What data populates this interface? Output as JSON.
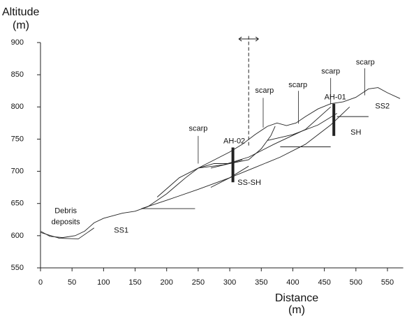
{
  "chart_data": {
    "type": "cross-section",
    "y_label": [
      "Altitude",
      "(m)"
    ],
    "x_label": [
      "Distance",
      "(m)"
    ],
    "xlim": [
      0,
      575
    ],
    "ylim": [
      550,
      900
    ],
    "xticks": [
      0,
      50,
      100,
      150,
      200,
      250,
      300,
      350,
      400,
      450,
      500,
      550
    ],
    "yticks": [
      550,
      600,
      650,
      700,
      750,
      800,
      850,
      900
    ],
    "color": "#222222",
    "lines": [
      {
        "x": [
          0,
          15,
          35,
          55,
          70,
          85,
          100,
          130,
          150,
          170,
          200,
          230,
          250,
          270,
          300,
          320,
          340,
          360,
          375,
          390,
          405,
          420,
          440,
          460,
          480,
          500,
          520,
          535,
          550,
          570
        ],
        "y": [
          607,
          599,
          597,
          600,
          607,
          620,
          627,
          635,
          638,
          645,
          665,
          690,
          705,
          715,
          730,
          742,
          757,
          770,
          775,
          771,
          775,
          785,
          797,
          805,
          808,
          815,
          828,
          830,
          822,
          813
        ]
      },
      {
        "x": [
          0,
          30,
          60,
          85
        ],
        "y": [
          605,
          596,
          595,
          612
        ]
      },
      {
        "x": [
          160,
          200,
          250,
          300,
          340,
          380,
          420,
          460,
          490
        ],
        "y": [
          642,
          655,
          672,
          690,
          706,
          722,
          742,
          772,
          800
        ]
      },
      {
        "x": [
          185,
          220,
          250,
          275,
          300,
          330,
          350,
          365,
          372
        ],
        "y": [
          660,
          690,
          705,
          712,
          712,
          718,
          735,
          755,
          770
        ]
      },
      {
        "x": [
          250,
          290,
          330,
          370,
          420,
          460
        ],
        "y": [
          705,
          710,
          722,
          742,
          765,
          800
        ]
      },
      {
        "x": [
          270,
          300,
          330
        ],
        "y": [
          675,
          690,
          708
        ]
      },
      {
        "x": [
          270,
          300,
          320
        ],
        "y": [
          705,
          712,
          718
        ]
      },
      {
        "x": [
          360,
          400,
          440,
          470
        ],
        "y": [
          748,
          757,
          772,
          790
        ]
      },
      {
        "x": [
          160,
          245
        ],
        "y": [
          642,
          642
        ]
      },
      {
        "x": [
          380,
          460
        ],
        "y": [
          738,
          738
        ]
      },
      {
        "x": [
          470,
          520
        ],
        "y": [
          785,
          785
        ]
      }
    ],
    "section_line": {
      "x": 330,
      "y": [
        740,
        912
      ]
    },
    "boreholes": [
      {
        "label": "AH-02",
        "x": 305,
        "top": 737,
        "bottom": 683
      },
      {
        "label": "AH-01",
        "x": 465,
        "top": 805,
        "bottom": 755
      }
    ],
    "annotations": [
      {
        "text": [
          "Debris",
          "deposits"
        ],
        "x": 40,
        "y": 638
      },
      {
        "text": [
          "SS1"
        ],
        "x": 128,
        "y": 608
      },
      {
        "text": [
          "scarp"
        ],
        "x": 250,
        "y": 766,
        "to": [
          250,
          755,
          250,
          712
        ]
      },
      {
        "text": [
          "scarp"
        ],
        "x": 355,
        "y": 825,
        "to": [
          353,
          814,
          353,
          768
        ]
      },
      {
        "text": [
          "scarp"
        ],
        "x": 408,
        "y": 834,
        "to": [
          409,
          825,
          409,
          774
        ]
      },
      {
        "text": [
          "scarp"
        ],
        "x": 460,
        "y": 855,
        "to": [
          460,
          845,
          460,
          804
        ]
      },
      {
        "text": [
          "scarp"
        ],
        "x": 515,
        "y": 869,
        "to": [
          514,
          860,
          514,
          818
        ]
      },
      {
        "text": [
          "SS-SH"
        ],
        "x": 331,
        "y": 682
      },
      {
        "text": [
          "SH"
        ],
        "x": 500,
        "y": 760
      },
      {
        "text": [
          "SS2"
        ],
        "x": 542,
        "y": 801
      }
    ]
  }
}
